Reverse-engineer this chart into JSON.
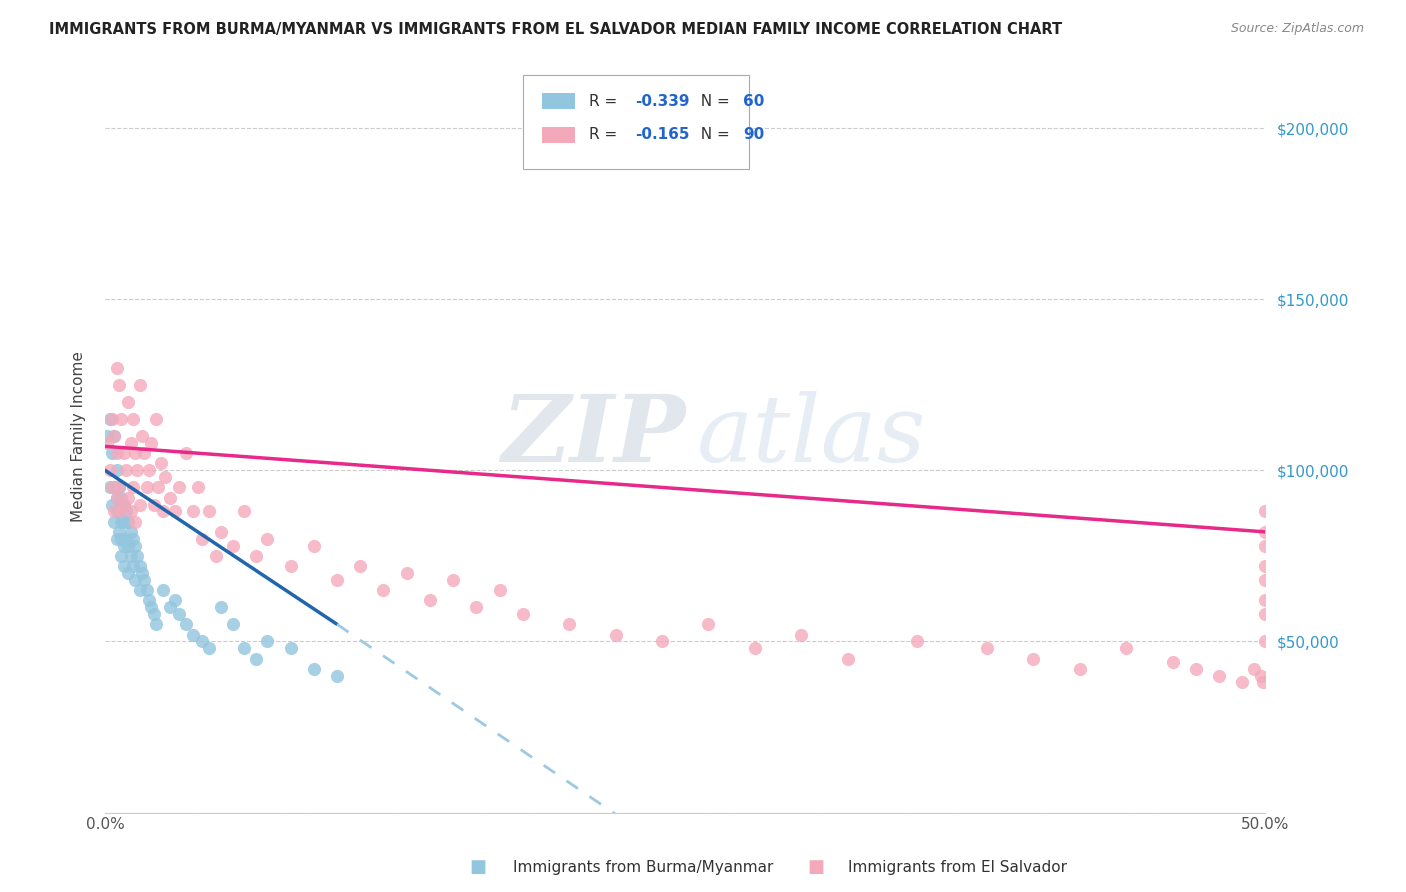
{
  "title": "IMMIGRANTS FROM BURMA/MYANMAR VS IMMIGRANTS FROM EL SALVADOR MEDIAN FAMILY INCOME CORRELATION CHART",
  "source": "Source: ZipAtlas.com",
  "ylabel": "Median Family Income",
  "yticks": [
    0,
    50000,
    100000,
    150000,
    200000
  ],
  "ytick_labels": [
    "",
    "$50,000",
    "$100,000",
    "$150,000",
    "$200,000"
  ],
  "xlim": [
    0.0,
    0.5
  ],
  "ylim": [
    0,
    220000
  ],
  "legend_R_blue": "-0.339",
  "legend_N_blue": "60",
  "legend_R_pink": "-0.165",
  "legend_N_pink": "90",
  "blue_color": "#92c5de",
  "pink_color": "#f4a9bb",
  "blue_line_color": "#2166ac",
  "pink_line_color": "#e7298a",
  "dashed_line_color": "#9ecae1",
  "watermark_zip": "ZIP",
  "watermark_atlas": "atlas",
  "blue_scatter_x": [
    0.001,
    0.002,
    0.002,
    0.003,
    0.003,
    0.004,
    0.004,
    0.004,
    0.005,
    0.005,
    0.005,
    0.005,
    0.006,
    0.006,
    0.006,
    0.007,
    0.007,
    0.007,
    0.007,
    0.008,
    0.008,
    0.008,
    0.008,
    0.009,
    0.009,
    0.01,
    0.01,
    0.01,
    0.011,
    0.011,
    0.012,
    0.012,
    0.013,
    0.013,
    0.014,
    0.015,
    0.015,
    0.016,
    0.017,
    0.018,
    0.019,
    0.02,
    0.021,
    0.022,
    0.025,
    0.028,
    0.03,
    0.032,
    0.035,
    0.038,
    0.042,
    0.045,
    0.05,
    0.055,
    0.06,
    0.065,
    0.07,
    0.08,
    0.09,
    0.1
  ],
  "blue_scatter_y": [
    110000,
    115000,
    95000,
    105000,
    90000,
    110000,
    95000,
    85000,
    100000,
    92000,
    88000,
    80000,
    95000,
    88000,
    82000,
    92000,
    85000,
    80000,
    75000,
    90000,
    85000,
    78000,
    72000,
    88000,
    80000,
    85000,
    78000,
    70000,
    82000,
    75000,
    80000,
    72000,
    78000,
    68000,
    75000,
    72000,
    65000,
    70000,
    68000,
    65000,
    62000,
    60000,
    58000,
    55000,
    65000,
    60000,
    62000,
    58000,
    55000,
    52000,
    50000,
    48000,
    60000,
    55000,
    48000,
    45000,
    50000,
    48000,
    42000,
    40000
  ],
  "pink_scatter_x": [
    0.001,
    0.002,
    0.003,
    0.003,
    0.004,
    0.004,
    0.005,
    0.005,
    0.005,
    0.006,
    0.006,
    0.007,
    0.007,
    0.008,
    0.008,
    0.009,
    0.01,
    0.01,
    0.011,
    0.011,
    0.012,
    0.012,
    0.013,
    0.013,
    0.014,
    0.015,
    0.015,
    0.016,
    0.017,
    0.018,
    0.019,
    0.02,
    0.021,
    0.022,
    0.023,
    0.024,
    0.025,
    0.026,
    0.028,
    0.03,
    0.032,
    0.035,
    0.038,
    0.04,
    0.042,
    0.045,
    0.048,
    0.05,
    0.055,
    0.06,
    0.065,
    0.07,
    0.08,
    0.09,
    0.1,
    0.11,
    0.12,
    0.13,
    0.14,
    0.15,
    0.16,
    0.17,
    0.18,
    0.2,
    0.22,
    0.24,
    0.26,
    0.28,
    0.3,
    0.32,
    0.35,
    0.38,
    0.4,
    0.42,
    0.44,
    0.46,
    0.47,
    0.48,
    0.49,
    0.495,
    0.498,
    0.499,
    0.5,
    0.5,
    0.5,
    0.5,
    0.5,
    0.5,
    0.5,
    0.5
  ],
  "pink_scatter_y": [
    108000,
    100000,
    115000,
    95000,
    110000,
    88000,
    130000,
    105000,
    92000,
    125000,
    95000,
    115000,
    88000,
    105000,
    90000,
    100000,
    120000,
    92000,
    108000,
    88000,
    115000,
    95000,
    105000,
    85000,
    100000,
    125000,
    90000,
    110000,
    105000,
    95000,
    100000,
    108000,
    90000,
    115000,
    95000,
    102000,
    88000,
    98000,
    92000,
    88000,
    95000,
    105000,
    88000,
    95000,
    80000,
    88000,
    75000,
    82000,
    78000,
    88000,
    75000,
    80000,
    72000,
    78000,
    68000,
    72000,
    65000,
    70000,
    62000,
    68000,
    60000,
    65000,
    58000,
    55000,
    52000,
    50000,
    55000,
    48000,
    52000,
    45000,
    50000,
    48000,
    45000,
    42000,
    48000,
    44000,
    42000,
    40000,
    38000,
    42000,
    40000,
    38000,
    88000,
    82000,
    78000,
    72000,
    68000,
    62000,
    58000,
    50000
  ]
}
